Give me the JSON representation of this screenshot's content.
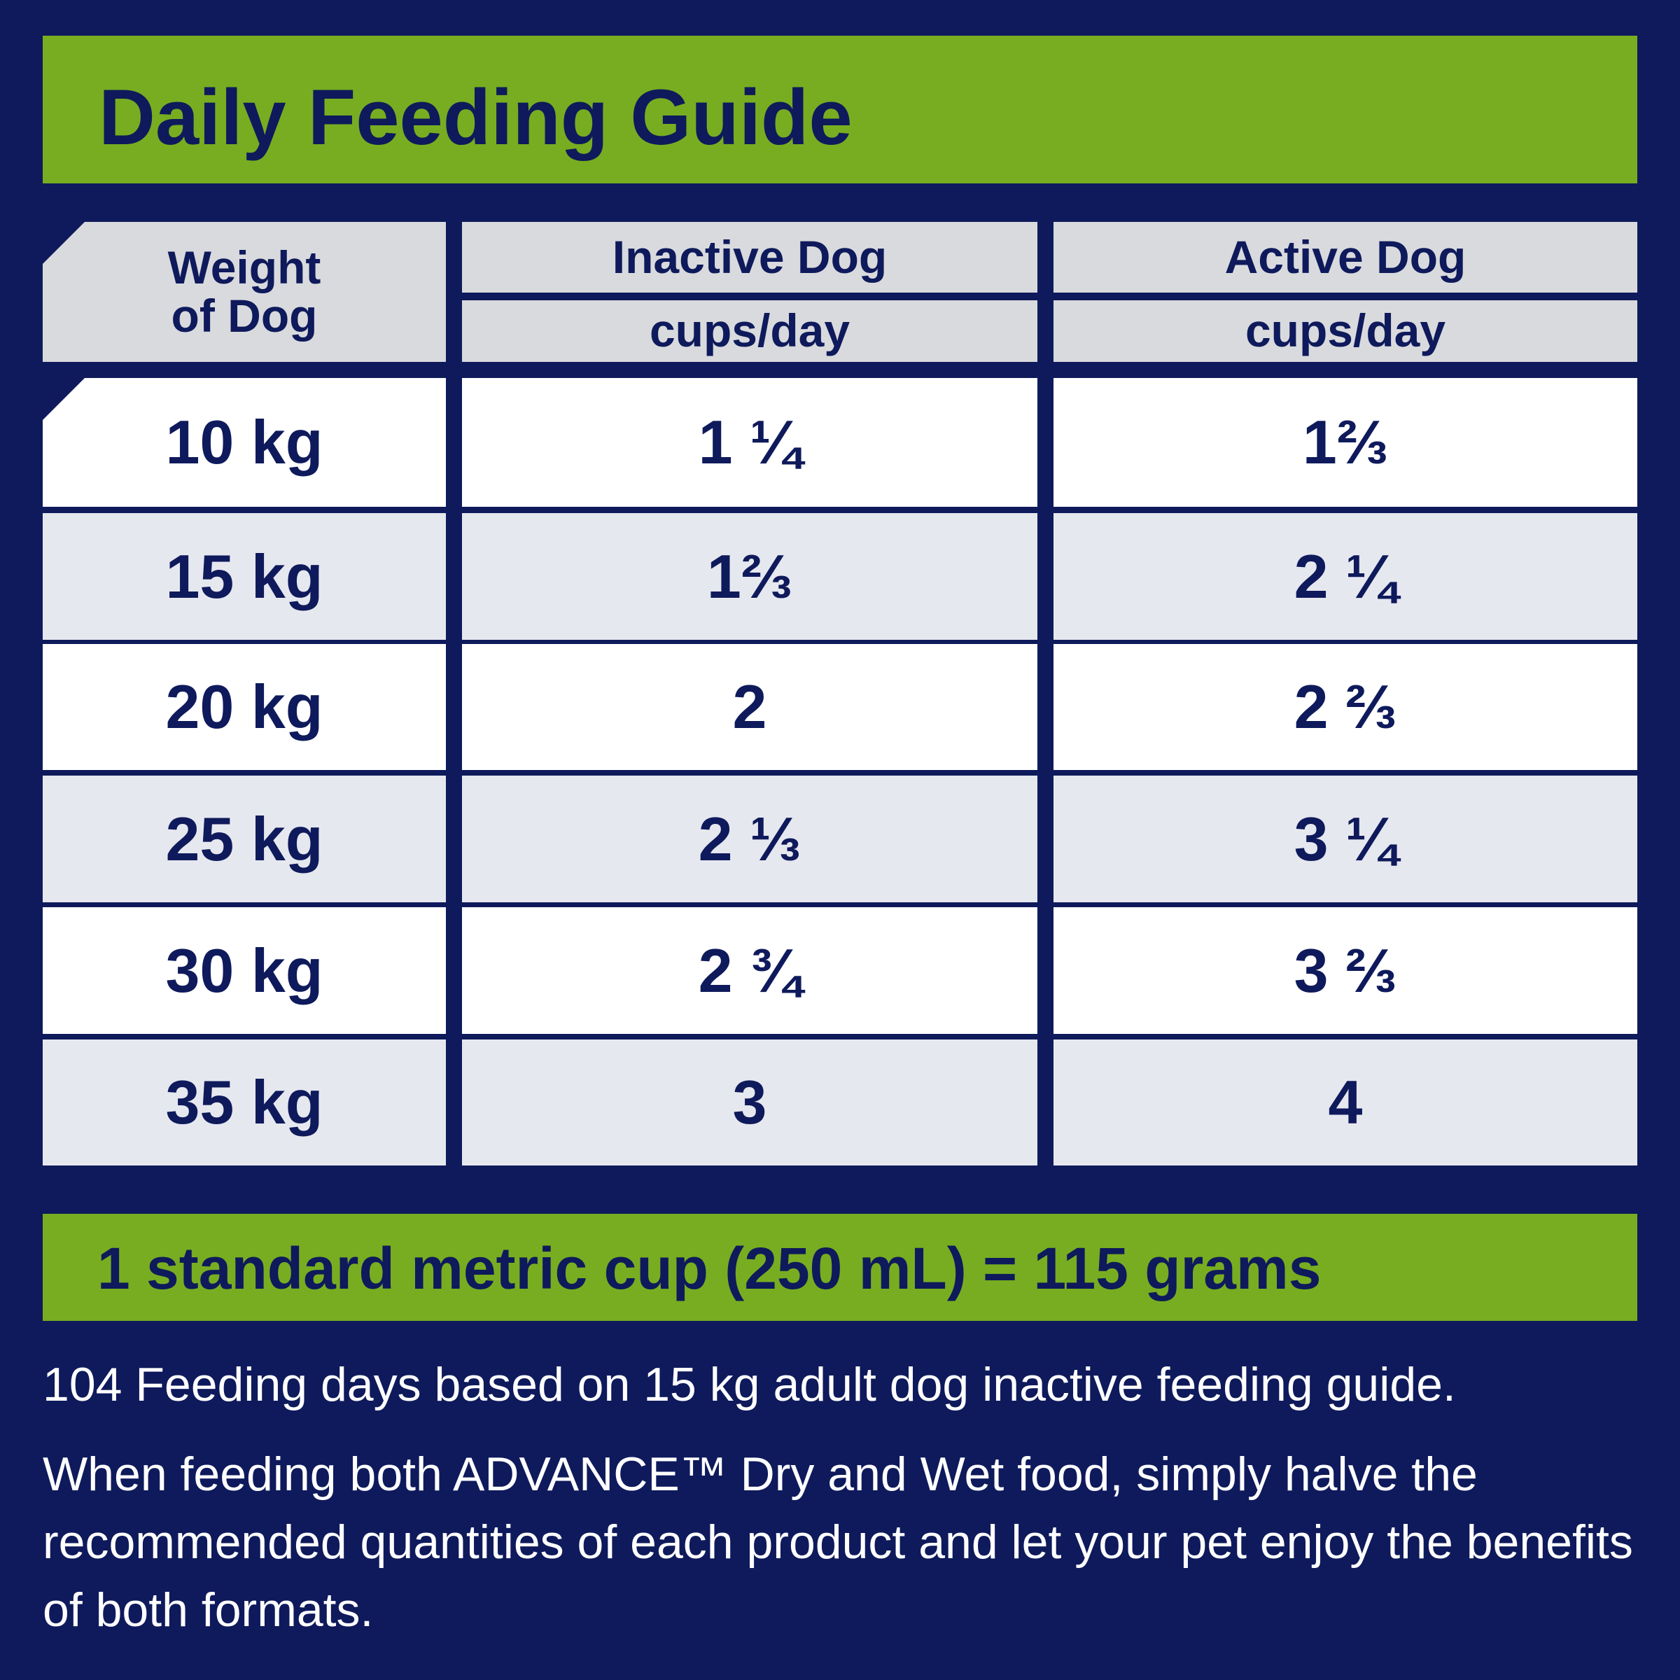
{
  "header": {
    "title": "Daily Feeding Guide"
  },
  "table": {
    "headers": [
      {
        "title": "Weight of Dog"
      },
      {
        "title": "Inactive Dog",
        "unit": "cups/day"
      },
      {
        "title": "Active Dog",
        "unit": "cups/day"
      }
    ],
    "rows": [
      [
        "10 kg",
        "1 ¼",
        "1⅔"
      ],
      [
        "15 kg",
        "1⅔",
        "2 ¼"
      ],
      [
        "20 kg",
        "2",
        "2 ⅔"
      ],
      [
        "25 kg",
        "2 ⅓",
        "3 ¼"
      ],
      [
        "30 kg",
        "2 ¾",
        "3 ⅔"
      ],
      [
        "35 kg",
        "3",
        "4"
      ]
    ]
  },
  "footer": {
    "conversion": "1 standard metric cup (250 mL) = 115 grams",
    "notes": [
      "104 Feeding days based on 15 kg adult dog inactive feeding guide.",
      "When feeding both ADVANCE™ Dry and Wet food, simply halve the recommended quantities of each product and let your pet enjoy the benefits of both formats."
    ]
  }
}
